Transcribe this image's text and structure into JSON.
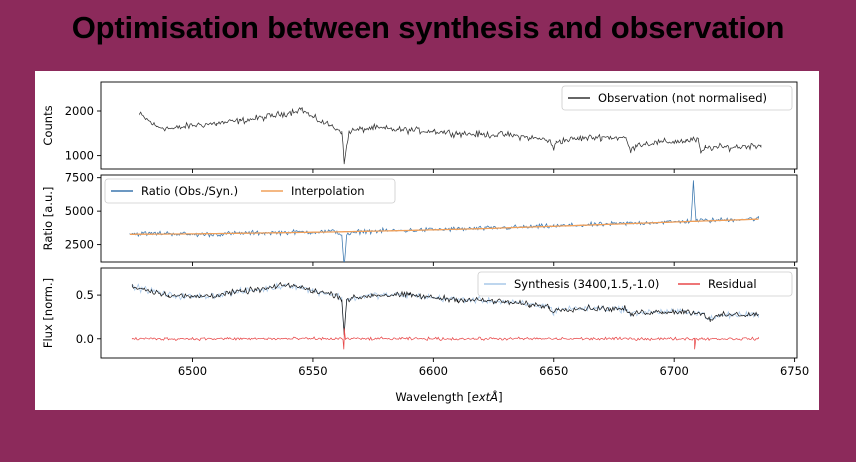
{
  "slide": {
    "title": "Optimisation between synthesis and observation",
    "background_color": "#8c2a5b"
  },
  "chart_data": [
    {
      "type": "line",
      "panel": "top",
      "ylabel": "Counts",
      "ylim": [
        700,
        2650
      ],
      "yticks": [
        1000,
        2000
      ],
      "xlim": [
        6462,
        6751
      ],
      "legend": "top-right",
      "series": [
        {
          "name": "Observation (not normalised)",
          "color": "#333333",
          "x_range": [
            6478,
            6736
          ],
          "points": [
            [
              6478,
              1930
            ],
            [
              6485,
              1650
            ],
            [
              6492,
              1600
            ],
            [
              6500,
              1680
            ],
            [
              6510,
              1720
            ],
            [
              6520,
              1780
            ],
            [
              6530,
              1860
            ],
            [
              6540,
              1960
            ],
            [
              6545,
              2050
            ],
            [
              6550,
              1850
            ],
            [
              6557,
              1680
            ],
            [
              6562,
              1550
            ],
            [
              6563,
              820
            ],
            [
              6565,
              1550
            ],
            [
              6575,
              1620
            ],
            [
              6585,
              1580
            ],
            [
              6600,
              1550
            ],
            [
              6610,
              1500
            ],
            [
              6620,
              1470
            ],
            [
              6630,
              1470
            ],
            [
              6640,
              1400
            ],
            [
              6648,
              1350
            ],
            [
              6650,
              1130
            ],
            [
              6651,
              1320
            ],
            [
              6660,
              1380
            ],
            [
              6670,
              1420
            ],
            [
              6680,
              1390
            ],
            [
              6682,
              1080
            ],
            [
              6684,
              1250
            ],
            [
              6695,
              1300
            ],
            [
              6705,
              1330
            ],
            [
              6710,
              1360
            ],
            [
              6711,
              1050
            ],
            [
              6713,
              1180
            ],
            [
              6725,
              1190
            ],
            [
              6736,
              1240
            ]
          ]
        }
      ]
    },
    {
      "type": "line",
      "panel": "middle",
      "ylabel": "Ratio [a.u.]",
      "ylim": [
        1200,
        7700
      ],
      "yticks": [
        2500,
        5000,
        7500
      ],
      "xlim": [
        6462,
        6751
      ],
      "legend": "top-left",
      "series": [
        {
          "name": "Ratio (Obs./Syn.)",
          "color": "#3b77ae",
          "points": [
            [
              6474,
              3300
            ],
            [
              6490,
              3350
            ],
            [
              6500,
              3250
            ],
            [
              6510,
              3280
            ],
            [
              6520,
              3350
            ],
            [
              6530,
              3380
            ],
            [
              6540,
              3420
            ],
            [
              6550,
              3450
            ],
            [
              6560,
              3480
            ],
            [
              6562,
              3200
            ],
            [
              6563,
              900
            ],
            [
              6564,
              3200
            ],
            [
              6570,
              3500
            ],
            [
              6580,
              3520
            ],
            [
              6590,
              3560
            ],
            [
              6600,
              3620
            ],
            [
              6610,
              3660
            ],
            [
              6620,
              3700
            ],
            [
              6630,
              3760
            ],
            [
              6640,
              3820
            ],
            [
              6650,
              3880
            ],
            [
              6660,
              3940
            ],
            [
              6670,
              4000
            ],
            [
              6680,
              4080
            ],
            [
              6690,
              4150
            ],
            [
              6700,
              4200
            ],
            [
              6707,
              4250
            ],
            [
              6708,
              7300
            ],
            [
              6709,
              4300
            ],
            [
              6715,
              4300
            ],
            [
              6725,
              4380
            ],
            [
              6735,
              4450
            ]
          ]
        },
        {
          "name": "Interpolation",
          "color": "#f0a05a",
          "points": [
            [
              6474,
              3270
            ],
            [
              6500,
              3300
            ],
            [
              6530,
              3370
            ],
            [
              6560,
              3450
            ],
            [
              6590,
              3560
            ],
            [
              6620,
              3690
            ],
            [
              6650,
              3870
            ],
            [
              6680,
              4060
            ],
            [
              6710,
              4250
            ],
            [
              6735,
              4400
            ]
          ]
        }
      ]
    },
    {
      "type": "line",
      "panel": "bottom",
      "xlabel": "Wavelength [$\\mathrm{\\AA}$]",
      "xlabel_display": "Wavelength [",
      "xlabel_italic": "extÅ",
      "xlabel_close": "]",
      "ylabel": "Flux [norm.]",
      "ylim": [
        -0.22,
        0.81
      ],
      "yticks": [
        0.0,
        0.5
      ],
      "xlim": [
        6462,
        6751
      ],
      "xticks": [
        6500,
        6550,
        6600,
        6650,
        6700,
        6750
      ],
      "legend": "top-right",
      "legend_columns": 2,
      "series": [
        {
          "name": "Synthesis (3400,1.5,-1.0)",
          "color": "#a9c8e8",
          "points": [
            [
              6475,
              0.6
            ],
            [
              6490,
              0.5
            ],
            [
              6500,
              0.48
            ],
            [
              6510,
              0.5
            ],
            [
              6520,
              0.54
            ],
            [
              6530,
              0.57
            ],
            [
              6540,
              0.62
            ],
            [
              6550,
              0.55
            ],
            [
              6560,
              0.5
            ],
            [
              6562,
              0.45
            ],
            [
              6563,
              0.05
            ],
            [
              6564,
              0.45
            ],
            [
              6575,
              0.5
            ],
            [
              6590,
              0.5
            ],
            [
              6600,
              0.47
            ],
            [
              6610,
              0.45
            ],
            [
              6620,
              0.44
            ],
            [
              6630,
              0.42
            ],
            [
              6640,
              0.39
            ],
            [
              6648,
              0.37
            ],
            [
              6650,
              0.3
            ],
            [
              6652,
              0.34
            ],
            [
              6665,
              0.35
            ],
            [
              6680,
              0.34
            ],
            [
              6682,
              0.26
            ],
            [
              6684,
              0.3
            ],
            [
              6695,
              0.31
            ],
            [
              6705,
              0.31
            ],
            [
              6712,
              0.29
            ],
            [
              6715,
              0.22
            ],
            [
              6720,
              0.27
            ],
            [
              6735,
              0.28
            ]
          ]
        },
        {
          "name": "Residual",
          "color": "#e8494a",
          "points": [
            [
              6475,
              0.0
            ],
            [
              6735,
              0.0
            ]
          ]
        }
      ]
    }
  ]
}
